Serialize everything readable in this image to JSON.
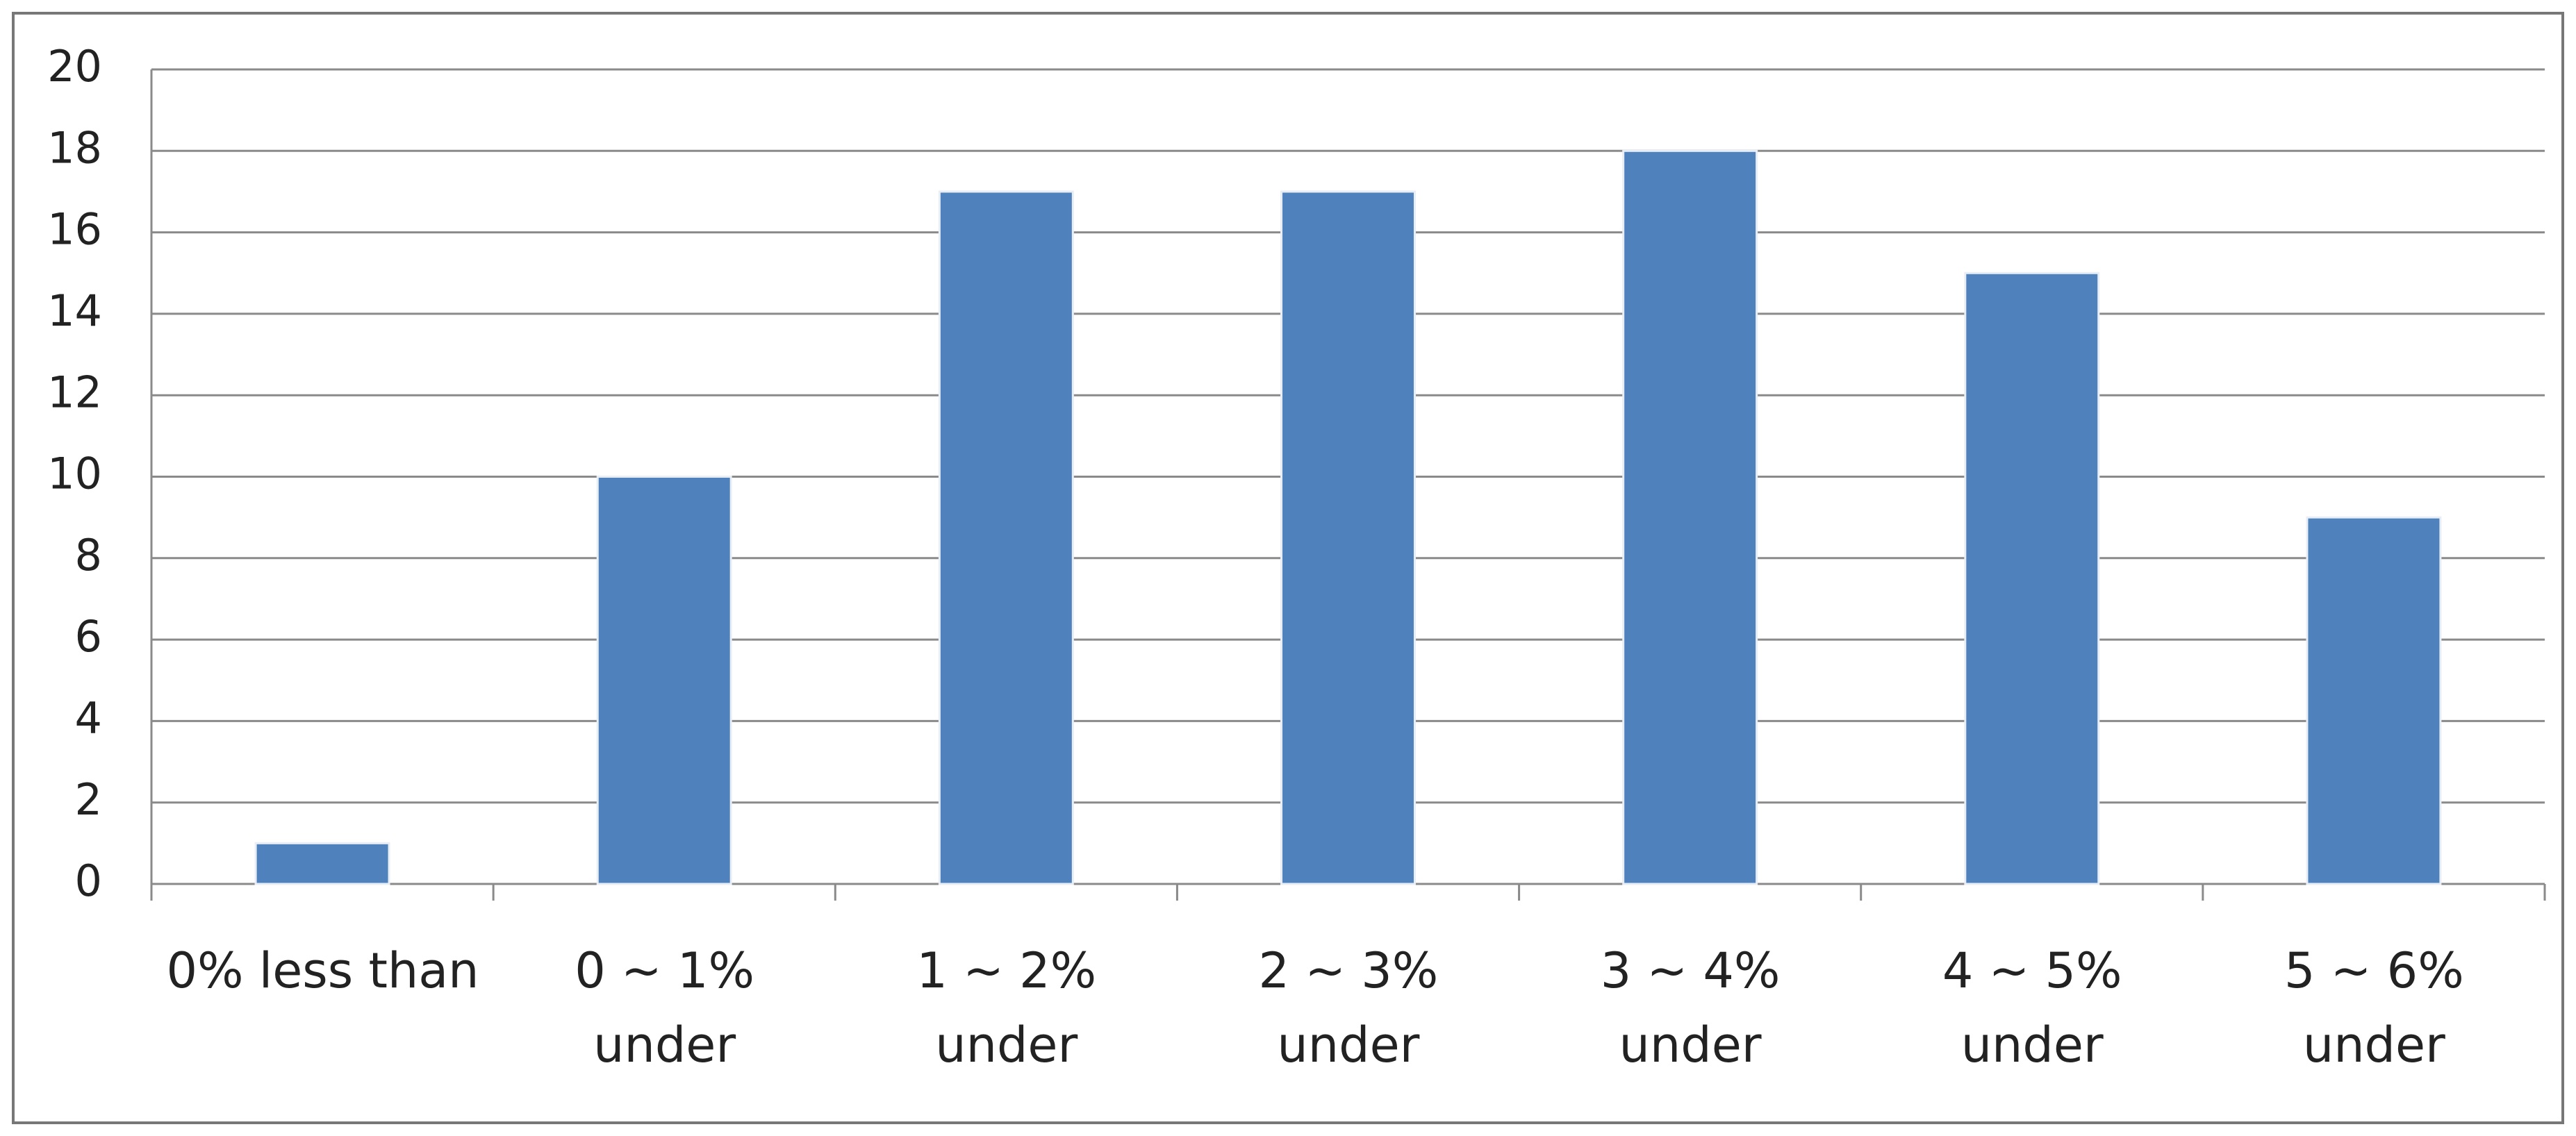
{
  "chart_data": {
    "type": "bar",
    "categories": [
      "0% less than",
      "0 ~ 1%\nunder",
      "1 ~ 2%\nunder",
      "2 ~ 3%\nunder",
      "3 ~ 4%\nunder",
      "4 ~ 5%\nunder",
      "5 ~ 6%\nunder"
    ],
    "values": [
      1,
      10,
      17,
      17,
      18,
      15,
      9
    ],
    "color": "#4f81bd",
    "ylim": [
      0,
      20
    ],
    "yticks": [
      0,
      2,
      4,
      6,
      8,
      10,
      12,
      14,
      16,
      18,
      20
    ],
    "grid": true
  }
}
